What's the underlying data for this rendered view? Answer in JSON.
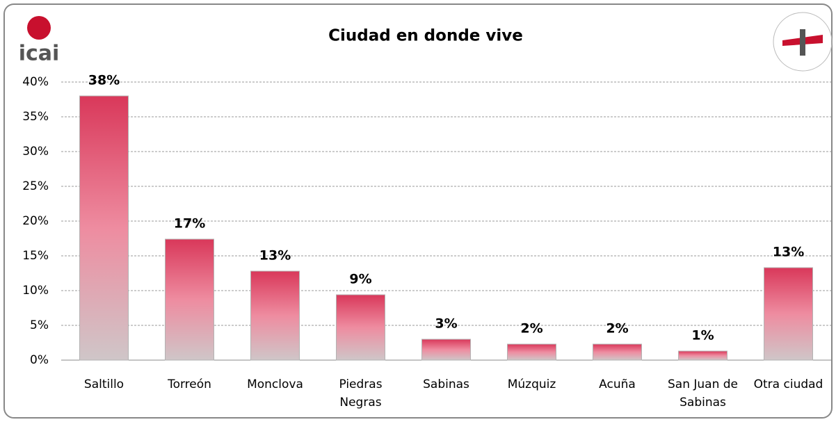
{
  "logo": "icai",
  "chart_data": {
    "type": "bar",
    "title": "Ciudad en donde vive",
    "categories": [
      "Saltillo",
      "Torreón",
      "Monclova",
      "Piedras Negras",
      "Sabinas",
      "Múzquiz",
      "Acuña",
      "San Juan de Sabinas",
      "Otra ciudad"
    ],
    "values": [
      38,
      17.4,
      12.8,
      9.4,
      3,
      2.3,
      2.3,
      1.3,
      13.3
    ],
    "value_labels": [
      "38%",
      "17%",
      "13%",
      "9%",
      "3%",
      "2%",
      "2%",
      "1%",
      "13%"
    ],
    "color": "#d9385a",
    "ylim": [
      0,
      40
    ],
    "yticks": [
      {
        "value": 0,
        "label": "0%"
      },
      {
        "value": 5,
        "label": "5%"
      },
      {
        "value": 10,
        "label": "10%"
      },
      {
        "value": 15,
        "label": "15%"
      },
      {
        "value": 20,
        "label": "20%"
      },
      {
        "value": 25,
        "label": "25%"
      },
      {
        "value": 30,
        "label": "30%"
      },
      {
        "value": 35,
        "label": "35%"
      },
      {
        "value": 40,
        "label": "40%"
      }
    ],
    "grid": true
  }
}
